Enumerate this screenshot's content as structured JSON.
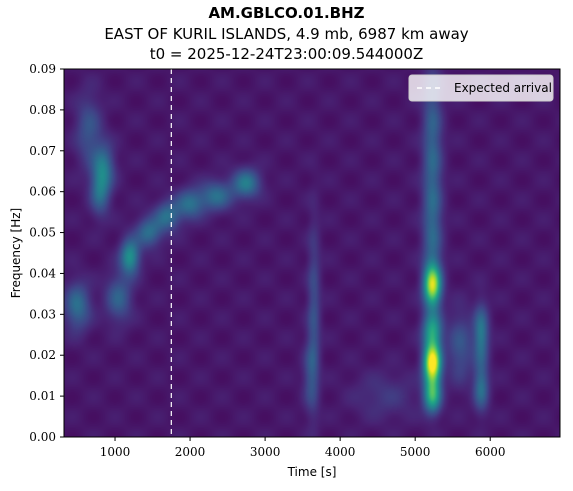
{
  "header": {
    "station": "AM.GBLCO.01.BHZ",
    "event": "EAST OF KURIL ISLANDS, 4.9 mb, 6987 km away",
    "t0": "t0 = 2025-12-24T23:00:09.544000Z"
  },
  "chart_data": {
    "type": "heatmap",
    "xlabel": "Time [s]",
    "ylabel": "Frequency [Hz]",
    "xlim": [
      320,
      6930
    ],
    "ylim": [
      0.0,
      0.09
    ],
    "xticks": [
      1000,
      2000,
      3000,
      4000,
      5000,
      6000
    ],
    "yticks": [
      0.0,
      0.01,
      0.02,
      0.03,
      0.04,
      0.05,
      0.06,
      0.07,
      0.08,
      0.09
    ],
    "colormap": "viridis",
    "expected_arrival_time": 1750,
    "legend": {
      "label": "Expected arrival",
      "placement": "upper-right"
    },
    "grid": false,
    "energy_features": [
      {
        "t": 5230,
        "f": 0.018,
        "st": 80,
        "sf": 0.0035,
        "amp": 1.0
      },
      {
        "t": 5230,
        "f": 0.037,
        "st": 80,
        "sf": 0.0035,
        "amp": 0.75
      },
      {
        "t": 5230,
        "f": 0.026,
        "st": 90,
        "sf": 0.003,
        "amp": 0.45
      },
      {
        "t": 5230,
        "f": 0.01,
        "st": 80,
        "sf": 0.003,
        "amp": 0.55
      },
      {
        "t": 5230,
        "f": 0.05,
        "st": 90,
        "sf": 0.012,
        "amp": 0.25
      },
      {
        "t": 5230,
        "f": 0.075,
        "st": 90,
        "sf": 0.012,
        "amp": 0.22
      },
      {
        "t": 5880,
        "f": 0.025,
        "st": 70,
        "sf": 0.005,
        "amp": 0.35
      },
      {
        "t": 5880,
        "f": 0.012,
        "st": 70,
        "sf": 0.004,
        "amp": 0.3
      },
      {
        "t": 5600,
        "f": 0.022,
        "st": 120,
        "sf": 0.006,
        "amp": 0.2
      },
      {
        "t": 1200,
        "f": 0.044,
        "st": 90,
        "sf": 0.003,
        "amp": 0.45
      },
      {
        "t": 1050,
        "f": 0.034,
        "st": 120,
        "sf": 0.004,
        "amp": 0.25
      },
      {
        "t": 1450,
        "f": 0.05,
        "st": 120,
        "sf": 0.0025,
        "amp": 0.3
      },
      {
        "t": 1700,
        "f": 0.054,
        "st": 120,
        "sf": 0.0025,
        "amp": 0.3
      },
      {
        "t": 2000,
        "f": 0.057,
        "st": 130,
        "sf": 0.0025,
        "amp": 0.3
      },
      {
        "t": 2350,
        "f": 0.059,
        "st": 150,
        "sf": 0.0025,
        "amp": 0.3
      },
      {
        "t": 2750,
        "f": 0.062,
        "st": 130,
        "sf": 0.0025,
        "amp": 0.35
      },
      {
        "t": 850,
        "f": 0.066,
        "st": 100,
        "sf": 0.004,
        "amp": 0.3
      },
      {
        "t": 800,
        "f": 0.06,
        "st": 90,
        "sf": 0.004,
        "amp": 0.28
      },
      {
        "t": 500,
        "f": 0.032,
        "st": 120,
        "sf": 0.004,
        "amp": 0.3
      },
      {
        "t": 650,
        "f": 0.075,
        "st": 120,
        "sf": 0.006,
        "amp": 0.2
      },
      {
        "t": 3650,
        "f": 0.03,
        "st": 60,
        "sf": 0.015,
        "amp": 0.18
      },
      {
        "t": 3600,
        "f": 0.015,
        "st": 70,
        "sf": 0.006,
        "amp": 0.15
      },
      {
        "t": 4600,
        "f": 0.01,
        "st": 300,
        "sf": 0.004,
        "amp": 0.1
      }
    ]
  }
}
